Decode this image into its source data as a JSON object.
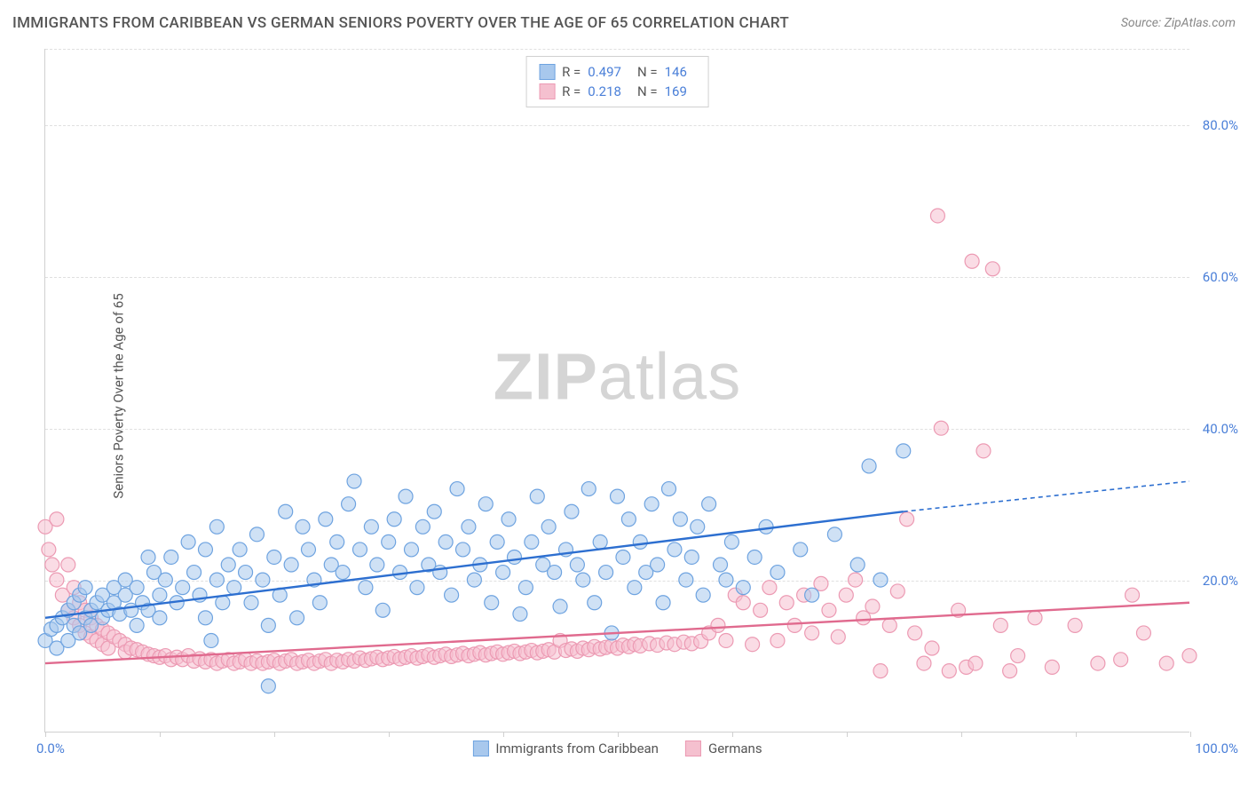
{
  "title": "IMMIGRANTS FROM CARIBBEAN VS GERMAN SENIORS POVERTY OVER THE AGE OF 65 CORRELATION CHART",
  "source": "Source: ZipAtlas.com",
  "ylabel": "Seniors Poverty Over the Age of 65",
  "watermark": {
    "bold": "ZIP",
    "light": "atlas"
  },
  "chart": {
    "type": "scatter",
    "xlim": [
      0,
      100
    ],
    "ylim": [
      0,
      90
    ],
    "x_ticks": [
      0,
      10,
      20,
      30,
      40,
      50,
      60,
      70,
      80,
      90,
      100
    ],
    "y_gridlines": [
      20,
      40,
      60,
      80
    ],
    "y_tick_labels": [
      "20.0%",
      "40.0%",
      "60.0%",
      "80.0%"
    ],
    "x_tick_labels": {
      "start": "0.0%",
      "end": "100.0%"
    },
    "background_color": "#ffffff",
    "grid_color": "#e0e0e0",
    "axis_color": "#d0d0d0",
    "tick_label_color": "#4a7fd8",
    "marker_radius": 8,
    "marker_opacity": 0.55,
    "line_width": 2.4
  },
  "series": [
    {
      "name": "Immigrants from Caribbean",
      "color_fill": "#a8c8ed",
      "color_stroke": "#6ea3e0",
      "line_color": "#2d6fd0",
      "R": "0.497",
      "N": "146",
      "trend": {
        "x1": 0,
        "y1": 15,
        "x2": 75,
        "y2": 29,
        "x2_dash": 100,
        "y2_dash": 33
      },
      "points": [
        [
          0,
          12
        ],
        [
          0.5,
          13.5
        ],
        [
          1,
          11
        ],
        [
          1,
          14
        ],
        [
          1.5,
          15
        ],
        [
          2,
          12
        ],
        [
          2,
          16
        ],
        [
          2.5,
          14
        ],
        [
          2.5,
          17
        ],
        [
          3,
          13
        ],
        [
          3,
          18
        ],
        [
          3.5,
          15
        ],
        [
          3.5,
          19
        ],
        [
          4,
          14
        ],
        [
          4,
          16
        ],
        [
          4.5,
          17
        ],
        [
          5,
          15
        ],
        [
          5,
          18
        ],
        [
          5.5,
          16
        ],
        [
          6,
          17
        ],
        [
          6,
          19
        ],
        [
          6.5,
          15.5
        ],
        [
          7,
          18
        ],
        [
          7,
          20
        ],
        [
          7.5,
          16
        ],
        [
          8,
          14
        ],
        [
          8,
          19
        ],
        [
          8.5,
          17
        ],
        [
          9,
          23
        ],
        [
          9,
          16
        ],
        [
          9.5,
          21
        ],
        [
          10,
          18
        ],
        [
          10,
          15
        ],
        [
          10.5,
          20
        ],
        [
          11,
          23
        ],
        [
          11.5,
          17
        ],
        [
          12,
          19
        ],
        [
          12.5,
          25
        ],
        [
          13,
          21
        ],
        [
          13.5,
          18
        ],
        [
          14,
          24
        ],
        [
          14,
          15
        ],
        [
          14.5,
          12
        ],
        [
          15,
          27
        ],
        [
          15,
          20
        ],
        [
          15.5,
          17
        ],
        [
          16,
          22
        ],
        [
          16.5,
          19
        ],
        [
          17,
          24
        ],
        [
          17.5,
          21
        ],
        [
          18,
          17
        ],
        [
          18.5,
          26
        ],
        [
          19,
          20
        ],
        [
          19.5,
          14
        ],
        [
          19.5,
          6
        ],
        [
          20,
          23
        ],
        [
          20.5,
          18
        ],
        [
          21,
          29
        ],
        [
          21.5,
          22
        ],
        [
          22,
          15
        ],
        [
          22.5,
          27
        ],
        [
          23,
          24
        ],
        [
          23.5,
          20
        ],
        [
          24,
          17
        ],
        [
          24.5,
          28
        ],
        [
          25,
          22
        ],
        [
          25.5,
          25
        ],
        [
          26,
          21
        ],
        [
          26.5,
          30
        ],
        [
          27,
          33
        ],
        [
          27.5,
          24
        ],
        [
          28,
          19
        ],
        [
          28.5,
          27
        ],
        [
          29,
          22
        ],
        [
          29.5,
          16
        ],
        [
          30,
          25
        ],
        [
          30.5,
          28
        ],
        [
          31,
          21
        ],
        [
          31.5,
          31
        ],
        [
          32,
          24
        ],
        [
          32.5,
          19
        ],
        [
          33,
          27
        ],
        [
          33.5,
          22
        ],
        [
          34,
          29
        ],
        [
          34.5,
          21
        ],
        [
          35,
          25
        ],
        [
          35.5,
          18
        ],
        [
          36,
          32
        ],
        [
          36.5,
          24
        ],
        [
          37,
          27
        ],
        [
          37.5,
          20
        ],
        [
          38,
          22
        ],
        [
          38.5,
          30
        ],
        [
          39,
          17
        ],
        [
          39.5,
          25
        ],
        [
          40,
          21
        ],
        [
          40.5,
          28
        ],
        [
          41,
          23
        ],
        [
          41.5,
          15.5
        ],
        [
          42,
          19
        ],
        [
          42.5,
          25
        ],
        [
          43,
          31
        ],
        [
          43.5,
          22
        ],
        [
          44,
          27
        ],
        [
          44.5,
          21
        ],
        [
          45,
          16.5
        ],
        [
          45.5,
          24
        ],
        [
          46,
          29
        ],
        [
          46.5,
          22
        ],
        [
          47,
          20
        ],
        [
          47.5,
          32
        ],
        [
          48,
          17
        ],
        [
          48.5,
          25
        ],
        [
          49,
          21
        ],
        [
          49.5,
          13
        ],
        [
          50,
          31
        ],
        [
          50.5,
          23
        ],
        [
          51,
          28
        ],
        [
          51.5,
          19
        ],
        [
          52,
          25
        ],
        [
          52.5,
          21
        ],
        [
          53,
          30
        ],
        [
          53.5,
          22
        ],
        [
          54,
          17
        ],
        [
          54.5,
          32
        ],
        [
          55,
          24
        ],
        [
          55.5,
          28
        ],
        [
          56,
          20
        ],
        [
          56.5,
          23
        ],
        [
          57,
          27
        ],
        [
          57.5,
          18
        ],
        [
          58,
          30
        ],
        [
          59,
          22
        ],
        [
          59.5,
          20
        ],
        [
          60,
          25
        ],
        [
          61,
          19
        ],
        [
          62,
          23
        ],
        [
          63,
          27
        ],
        [
          64,
          21
        ],
        [
          66,
          24
        ],
        [
          67,
          18
        ],
        [
          69,
          26
        ],
        [
          71,
          22
        ],
        [
          72,
          35
        ],
        [
          73,
          20
        ],
        [
          75,
          37
        ]
      ]
    },
    {
      "name": "Germans",
      "color_fill": "#f5c0cf",
      "color_stroke": "#ec9ab3",
      "line_color": "#e06a8e",
      "R": "0.218",
      "N": "169",
      "trend": {
        "x1": 0,
        "y1": 9,
        "x2": 100,
        "y2": 17,
        "x2_dash": 100,
        "y2_dash": 17
      },
      "points": [
        [
          0,
          27
        ],
        [
          0.3,
          24
        ],
        [
          0.6,
          22
        ],
        [
          1,
          28
        ],
        [
          1,
          20
        ],
        [
          1.5,
          18
        ],
        [
          2,
          22
        ],
        [
          2,
          16
        ],
        [
          2.5,
          19
        ],
        [
          2.5,
          15
        ],
        [
          3,
          17
        ],
        [
          3,
          14
        ],
        [
          3.5,
          16
        ],
        [
          3.5,
          13
        ],
        [
          4,
          15
        ],
        [
          4,
          12.5
        ],
        [
          4.5,
          14
        ],
        [
          4.5,
          12
        ],
        [
          5,
          13.5
        ],
        [
          5,
          11.5
        ],
        [
          5.5,
          13
        ],
        [
          5.5,
          11
        ],
        [
          6,
          12.5
        ],
        [
          6.5,
          12
        ],
        [
          7,
          11.5
        ],
        [
          7,
          10.5
        ],
        [
          7.5,
          11
        ],
        [
          8,
          10.8
        ],
        [
          8.5,
          10.5
        ],
        [
          9,
          10.2
        ],
        [
          9.5,
          10
        ],
        [
          10,
          9.8
        ],
        [
          10.5,
          10
        ],
        [
          11,
          9.5
        ],
        [
          11.5,
          9.8
        ],
        [
          12,
          9.5
        ],
        [
          12.5,
          10
        ],
        [
          13,
          9.3
        ],
        [
          13.5,
          9.6
        ],
        [
          14,
          9.2
        ],
        [
          14.5,
          9.5
        ],
        [
          15,
          9
        ],
        [
          15.5,
          9.3
        ],
        [
          16,
          9.5
        ],
        [
          16.5,
          9
        ],
        [
          17,
          9.2
        ],
        [
          17.5,
          9.5
        ],
        [
          18,
          9
        ],
        [
          18.5,
          9.3
        ],
        [
          19,
          9
        ],
        [
          19.5,
          9.2
        ],
        [
          20,
          9.4
        ],
        [
          20.5,
          9
        ],
        [
          21,
          9.3
        ],
        [
          21.5,
          9.5
        ],
        [
          22,
          9
        ],
        [
          22.5,
          9.2
        ],
        [
          23,
          9.4
        ],
        [
          23.5,
          9
        ],
        [
          24,
          9.3
        ],
        [
          24.5,
          9.5
        ],
        [
          25,
          9
        ],
        [
          25.5,
          9.4
        ],
        [
          26,
          9.2
        ],
        [
          26.5,
          9.5
        ],
        [
          27,
          9.3
        ],
        [
          27.5,
          9.7
        ],
        [
          28,
          9.4
        ],
        [
          28.5,
          9.6
        ],
        [
          29,
          9.8
        ],
        [
          29.5,
          9.5
        ],
        [
          30,
          9.7
        ],
        [
          30.5,
          9.9
        ],
        [
          31,
          9.6
        ],
        [
          31.5,
          9.8
        ],
        [
          32,
          10
        ],
        [
          32.5,
          9.7
        ],
        [
          33,
          9.9
        ],
        [
          33.5,
          10.1
        ],
        [
          34,
          9.8
        ],
        [
          34.5,
          10
        ],
        [
          35,
          10.2
        ],
        [
          35.5,
          9.9
        ],
        [
          36,
          10.1
        ],
        [
          36.5,
          10.3
        ],
        [
          37,
          10
        ],
        [
          37.5,
          10.2
        ],
        [
          38,
          10.4
        ],
        [
          38.5,
          10.1
        ],
        [
          39,
          10.3
        ],
        [
          39.5,
          10.5
        ],
        [
          40,
          10.2
        ],
        [
          40.5,
          10.4
        ],
        [
          41,
          10.6
        ],
        [
          41.5,
          10.3
        ],
        [
          42,
          10.5
        ],
        [
          42.5,
          10.7
        ],
        [
          43,
          10.4
        ],
        [
          43.5,
          10.6
        ],
        [
          44,
          10.8
        ],
        [
          44.5,
          10.5
        ],
        [
          45,
          12
        ],
        [
          45.5,
          10.7
        ],
        [
          46,
          10.9
        ],
        [
          46.5,
          10.6
        ],
        [
          47,
          11
        ],
        [
          47.5,
          10.8
        ],
        [
          48,
          11.2
        ],
        [
          48.5,
          10.9
        ],
        [
          49,
          11.1
        ],
        [
          49.5,
          11.3
        ],
        [
          50,
          11
        ],
        [
          50.5,
          11.4
        ],
        [
          51,
          11.2
        ],
        [
          51.5,
          11.5
        ],
        [
          52,
          11.3
        ],
        [
          52.8,
          11.6
        ],
        [
          53.5,
          11.4
        ],
        [
          54.3,
          11.7
        ],
        [
          55,
          11.5
        ],
        [
          55.8,
          11.8
        ],
        [
          56.5,
          11.6
        ],
        [
          57.3,
          11.9
        ],
        [
          58,
          13
        ],
        [
          58.8,
          14
        ],
        [
          59.5,
          12
        ],
        [
          60.3,
          18
        ],
        [
          61,
          17
        ],
        [
          61.8,
          11.5
        ],
        [
          62.5,
          16
        ],
        [
          63.3,
          19
        ],
        [
          64,
          12
        ],
        [
          64.8,
          17
        ],
        [
          65.5,
          14
        ],
        [
          66.3,
          18
        ],
        [
          67,
          13
        ],
        [
          67.8,
          19.5
        ],
        [
          68.5,
          16
        ],
        [
          69.3,
          12.5
        ],
        [
          70,
          18
        ],
        [
          70.8,
          20
        ],
        [
          71.5,
          15
        ],
        [
          72.3,
          16.5
        ],
        [
          73,
          8
        ],
        [
          73.8,
          14
        ],
        [
          74.5,
          18.5
        ],
        [
          75.3,
          28
        ],
        [
          76,
          13
        ],
        [
          76.8,
          9
        ],
        [
          77.5,
          11
        ],
        [
          78,
          68
        ],
        [
          78.3,
          40
        ],
        [
          79,
          8
        ],
        [
          79.8,
          16
        ],
        [
          80.5,
          8.5
        ],
        [
          81,
          62
        ],
        [
          81.3,
          9
        ],
        [
          82,
          37
        ],
        [
          82.8,
          61
        ],
        [
          83.5,
          14
        ],
        [
          84.3,
          8
        ],
        [
          85,
          10
        ],
        [
          86.5,
          15
        ],
        [
          88,
          8.5
        ],
        [
          90,
          14
        ],
        [
          92,
          9
        ],
        [
          94,
          9.5
        ],
        [
          95,
          18
        ],
        [
          96,
          13
        ],
        [
          98,
          9
        ],
        [
          100,
          10
        ]
      ]
    }
  ],
  "legend_bottom": [
    {
      "label": "Immigrants from Caribbean",
      "fill": "#a8c8ed",
      "stroke": "#6ea3e0"
    },
    {
      "label": "Germans",
      "fill": "#f5c0cf",
      "stroke": "#ec9ab3"
    }
  ]
}
